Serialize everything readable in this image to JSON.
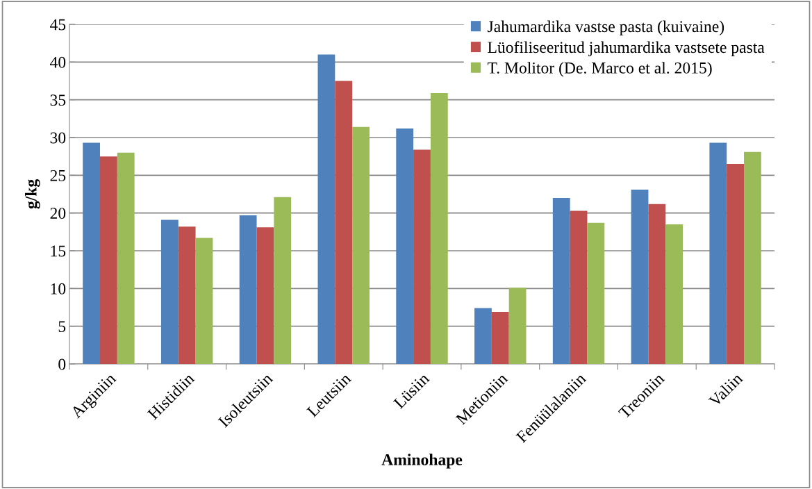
{
  "chart_data": {
    "type": "bar",
    "xlabel": "Aminohape",
    "ylabel": "g/kg",
    "categories": [
      "Arginiin",
      "Histidiin",
      "Isoleutsiin",
      "Leutsiin",
      "Lüsiin",
      "Metioniin",
      "Fenüülalaniin",
      "Treoniin",
      "Valiin"
    ],
    "series": [
      {
        "name": "Jahumardika vastse pasta (kuivaine)",
        "color": "#4f81bd",
        "values": [
          29.3,
          19.1,
          19.7,
          41.0,
          31.2,
          7.4,
          22.0,
          23.1,
          29.3
        ]
      },
      {
        "name": "Lüofiliseeritud jahumardika vastsete pasta",
        "color": "#c0504d",
        "values": [
          27.5,
          18.2,
          18.1,
          37.5,
          28.4,
          6.9,
          20.3,
          21.2,
          26.5
        ]
      },
      {
        "name": "T. Molitor (De. Marco et al. 2015)",
        "color": "#9bbb59",
        "values": [
          28.0,
          16.7,
          22.1,
          31.4,
          35.9,
          10.1,
          18.7,
          18.5,
          28.1
        ]
      }
    ],
    "ylim": [
      0,
      45
    ],
    "yticks": [
      0,
      5,
      10,
      15,
      20,
      25,
      30,
      35,
      40,
      45
    ],
    "grid": "y",
    "legend": "top right"
  }
}
